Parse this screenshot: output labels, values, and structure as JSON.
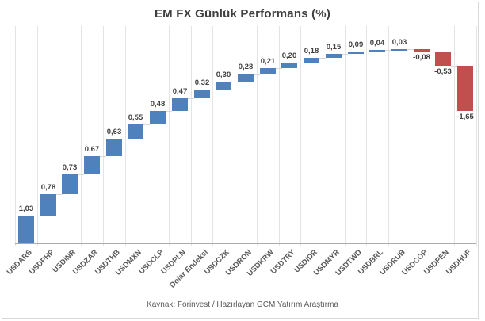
{
  "chart_data": {
    "type": "bar",
    "subtype": "waterfall",
    "title": "EM FX Günlük Performans (%)",
    "categories": [
      "USDARS",
      "USDPHP",
      "USDINR",
      "USDZAR",
      "USDTHB",
      "USDMXN",
      "USDCLP",
      "USDPLN",
      "Dolar Endeksi",
      "USDCZK",
      "USDRON",
      "USDKRW",
      "USDTRY",
      "USDIDR",
      "USDMYR",
      "USDTWD",
      "USDBRL",
      "USDRUB",
      "USDCOP",
      "USDPEN",
      "USDHUF"
    ],
    "values": [
      1.03,
      0.78,
      0.73,
      0.67,
      0.63,
      0.55,
      0.48,
      0.47,
      0.32,
      0.3,
      0.28,
      0.21,
      0.2,
      0.18,
      0.15,
      0.09,
      0.04,
      0.03,
      -0.08,
      -0.53,
      -1.65
    ],
    "labels": [
      "1,03",
      "0,78",
      "0,73",
      "0,67",
      "0,63",
      "0,55",
      "0,48",
      "0,47",
      "0,32",
      "0,30",
      "0,28",
      "0,21",
      "0,20",
      "0,18",
      "0,15",
      "0,09",
      "0,04",
      "0,03",
      "-0,08",
      "-0,53",
      "-1,65"
    ],
    "positive_color": "#4F81BD",
    "negative_color": "#C0504D",
    "ylim": [
      0,
      8
    ],
    "grid": "vertical-only",
    "legend": "none",
    "source": "Kaynak: Forinvest / Hazırlayan GCM Yatırım Araştırma"
  }
}
